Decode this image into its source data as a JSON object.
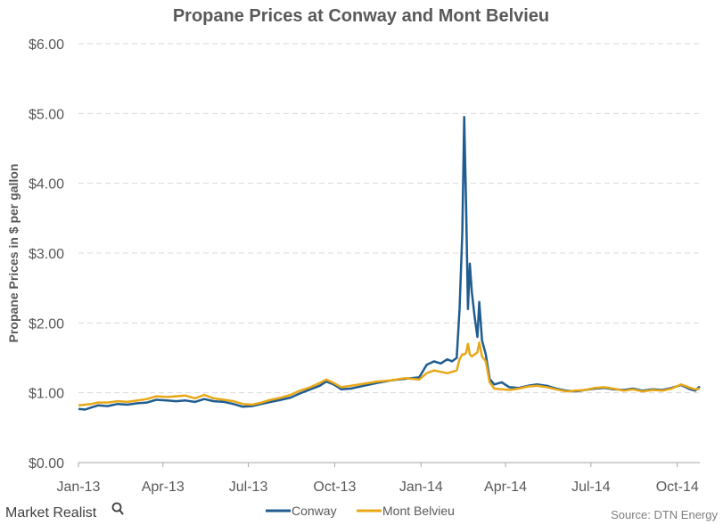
{
  "chart_data": {
    "type": "line",
    "title": "Propane Prices at Conway and Mont Belvieu",
    "ylabel": "Propane Prices in $ per gallon",
    "xlabel": "",
    "ylim": [
      0,
      6
    ],
    "xlim": [
      "2013-01-01",
      "2014-10-25"
    ],
    "y_ticks": [
      {
        "value": 0,
        "label": "$0.00"
      },
      {
        "value": 1,
        "label": "$1.00"
      },
      {
        "value": 2,
        "label": "$2.00"
      },
      {
        "value": 3,
        "label": "$3.00"
      },
      {
        "value": 4,
        "label": "$4.00"
      },
      {
        "value": 5,
        "label": "$5.00"
      },
      {
        "value": 6,
        "label": "$6.00"
      }
    ],
    "x_ticks": [
      {
        "date": "2013-01-01",
        "label": "Jan-13"
      },
      {
        "date": "2013-04-01",
        "label": "Apr-13"
      },
      {
        "date": "2013-07-01",
        "label": "Jul-13"
      },
      {
        "date": "2013-10-01",
        "label": "Oct-13"
      },
      {
        "date": "2014-01-01",
        "label": "Jan-14"
      },
      {
        "date": "2014-04-01",
        "label": "Apr-14"
      },
      {
        "date": "2014-07-01",
        "label": "Jul-14"
      },
      {
        "date": "2014-10-01",
        "label": "Oct-14"
      }
    ],
    "grid": true,
    "legend_position": "bottom",
    "series": [
      {
        "name": "Conway",
        "color": "#1f5c8f",
        "points": [
          [
            "2013-01-01",
            0.77
          ],
          [
            "2013-01-08",
            0.76
          ],
          [
            "2013-01-15",
            0.79
          ],
          [
            "2013-01-22",
            0.82
          ],
          [
            "2013-02-01",
            0.81
          ],
          [
            "2013-02-12",
            0.84
          ],
          [
            "2013-02-22",
            0.83
          ],
          [
            "2013-03-05",
            0.85
          ],
          [
            "2013-03-15",
            0.86
          ],
          [
            "2013-03-25",
            0.9
          ],
          [
            "2013-04-05",
            0.89
          ],
          [
            "2013-04-15",
            0.88
          ],
          [
            "2013-04-25",
            0.89
          ],
          [
            "2013-05-05",
            0.87
          ],
          [
            "2013-05-15",
            0.91
          ],
          [
            "2013-05-25",
            0.88
          ],
          [
            "2013-06-05",
            0.87
          ],
          [
            "2013-06-15",
            0.84
          ],
          [
            "2013-06-25",
            0.8
          ],
          [
            "2013-07-05",
            0.81
          ],
          [
            "2013-07-15",
            0.84
          ],
          [
            "2013-07-25",
            0.87
          ],
          [
            "2013-08-05",
            0.9
          ],
          [
            "2013-08-15",
            0.93
          ],
          [
            "2013-08-25",
            0.99
          ],
          [
            "2013-09-05",
            1.05
          ],
          [
            "2013-09-15",
            1.1
          ],
          [
            "2013-09-22",
            1.16
          ],
          [
            "2013-09-30",
            1.12
          ],
          [
            "2013-10-08",
            1.05
          ],
          [
            "2013-10-18",
            1.06
          ],
          [
            "2013-11-01",
            1.1
          ],
          [
            "2013-11-15",
            1.14
          ],
          [
            "2013-12-01",
            1.18
          ],
          [
            "2013-12-15",
            1.2
          ],
          [
            "2013-12-30",
            1.22
          ],
          [
            "2014-01-07",
            1.4
          ],
          [
            "2014-01-15",
            1.45
          ],
          [
            "2014-01-22",
            1.42
          ],
          [
            "2014-01-29",
            1.48
          ],
          [
            "2014-02-03",
            1.45
          ],
          [
            "2014-02-08",
            1.5
          ],
          [
            "2014-02-11",
            2.2
          ],
          [
            "2014-02-14",
            3.3
          ],
          [
            "2014-02-16",
            4.95
          ],
          [
            "2014-02-18",
            3.7
          ],
          [
            "2014-02-20",
            2.2
          ],
          [
            "2014-02-22",
            2.85
          ],
          [
            "2014-02-24",
            2.45
          ],
          [
            "2014-02-27",
            2.1
          ],
          [
            "2014-03-02",
            1.8
          ],
          [
            "2014-03-04",
            2.3
          ],
          [
            "2014-03-07",
            1.75
          ],
          [
            "2014-03-11",
            1.55
          ],
          [
            "2014-03-15",
            1.2
          ],
          [
            "2014-03-20",
            1.12
          ],
          [
            "2014-03-28",
            1.15
          ],
          [
            "2014-04-05",
            1.08
          ],
          [
            "2014-04-15",
            1.07
          ],
          [
            "2014-04-25",
            1.1
          ],
          [
            "2014-05-05",
            1.12
          ],
          [
            "2014-05-15",
            1.1
          ],
          [
            "2014-05-25",
            1.06
          ],
          [
            "2014-06-05",
            1.03
          ],
          [
            "2014-06-15",
            1.02
          ],
          [
            "2014-06-25",
            1.04
          ],
          [
            "2014-07-05",
            1.06
          ],
          [
            "2014-07-15",
            1.07
          ],
          [
            "2014-07-25",
            1.05
          ],
          [
            "2014-08-05",
            1.04
          ],
          [
            "2014-08-15",
            1.06
          ],
          [
            "2014-08-25",
            1.03
          ],
          [
            "2014-09-05",
            1.05
          ],
          [
            "2014-09-15",
            1.04
          ],
          [
            "2014-09-25",
            1.07
          ],
          [
            "2014-10-05",
            1.11
          ],
          [
            "2014-10-15",
            1.05
          ],
          [
            "2014-10-20",
            1.03
          ],
          [
            "2014-10-25",
            1.09
          ]
        ]
      },
      {
        "name": "Mont Belvieu",
        "color": "#e8a817",
        "points": [
          [
            "2013-01-01",
            0.82
          ],
          [
            "2013-01-08",
            0.83
          ],
          [
            "2013-01-15",
            0.84
          ],
          [
            "2013-01-22",
            0.86
          ],
          [
            "2013-02-01",
            0.86
          ],
          [
            "2013-02-12",
            0.88
          ],
          [
            "2013-02-22",
            0.87
          ],
          [
            "2013-03-05",
            0.89
          ],
          [
            "2013-03-15",
            0.91
          ],
          [
            "2013-03-25",
            0.95
          ],
          [
            "2013-04-05",
            0.94
          ],
          [
            "2013-04-15",
            0.95
          ],
          [
            "2013-04-25",
            0.96
          ],
          [
            "2013-05-05",
            0.92
          ],
          [
            "2013-05-15",
            0.97
          ],
          [
            "2013-05-25",
            0.92
          ],
          [
            "2013-06-05",
            0.9
          ],
          [
            "2013-06-15",
            0.88
          ],
          [
            "2013-06-25",
            0.84
          ],
          [
            "2013-07-05",
            0.83
          ],
          [
            "2013-07-15",
            0.86
          ],
          [
            "2013-07-25",
            0.9
          ],
          [
            "2013-08-05",
            0.93
          ],
          [
            "2013-08-15",
            0.97
          ],
          [
            "2013-08-25",
            1.03
          ],
          [
            "2013-09-05",
            1.08
          ],
          [
            "2013-09-15",
            1.14
          ],
          [
            "2013-09-22",
            1.19
          ],
          [
            "2013-09-30",
            1.14
          ],
          [
            "2013-10-08",
            1.08
          ],
          [
            "2013-10-18",
            1.1
          ],
          [
            "2013-11-01",
            1.13
          ],
          [
            "2013-11-15",
            1.16
          ],
          [
            "2013-12-01",
            1.18
          ],
          [
            "2013-12-15",
            1.21
          ],
          [
            "2013-12-30",
            1.19
          ],
          [
            "2014-01-07",
            1.28
          ],
          [
            "2014-01-15",
            1.32
          ],
          [
            "2014-01-22",
            1.3
          ],
          [
            "2014-01-29",
            1.28
          ],
          [
            "2014-02-03",
            1.3
          ],
          [
            "2014-02-08",
            1.32
          ],
          [
            "2014-02-11",
            1.48
          ],
          [
            "2014-02-14",
            1.55
          ],
          [
            "2014-02-16",
            1.55
          ],
          [
            "2014-02-18",
            1.57
          ],
          [
            "2014-02-20",
            1.7
          ],
          [
            "2014-02-22",
            1.55
          ],
          [
            "2014-02-24",
            1.52
          ],
          [
            "2014-02-27",
            1.55
          ],
          [
            "2014-03-02",
            1.58
          ],
          [
            "2014-03-04",
            1.72
          ],
          [
            "2014-03-07",
            1.52
          ],
          [
            "2014-03-11",
            1.45
          ],
          [
            "2014-03-15",
            1.15
          ],
          [
            "2014-03-20",
            1.06
          ],
          [
            "2014-03-28",
            1.05
          ],
          [
            "2014-04-05",
            1.04
          ],
          [
            "2014-04-15",
            1.06
          ],
          [
            "2014-04-25",
            1.09
          ],
          [
            "2014-05-05",
            1.1
          ],
          [
            "2014-05-15",
            1.08
          ],
          [
            "2014-05-25",
            1.05
          ],
          [
            "2014-06-05",
            1.02
          ],
          [
            "2014-06-15",
            1.03
          ],
          [
            "2014-06-25",
            1.04
          ],
          [
            "2014-07-05",
            1.07
          ],
          [
            "2014-07-15",
            1.08
          ],
          [
            "2014-07-25",
            1.06
          ],
          [
            "2014-08-05",
            1.03
          ],
          [
            "2014-08-15",
            1.05
          ],
          [
            "2014-08-25",
            1.02
          ],
          [
            "2014-09-05",
            1.04
          ],
          [
            "2014-09-15",
            1.03
          ],
          [
            "2014-09-25",
            1.06
          ],
          [
            "2014-10-05",
            1.12
          ],
          [
            "2014-10-15",
            1.07
          ],
          [
            "2014-10-20",
            1.05
          ],
          [
            "2014-10-25",
            1.06
          ]
        ]
      }
    ]
  },
  "footer": {
    "brand": "Market Realist",
    "source": "Source: DTN Energy"
  }
}
